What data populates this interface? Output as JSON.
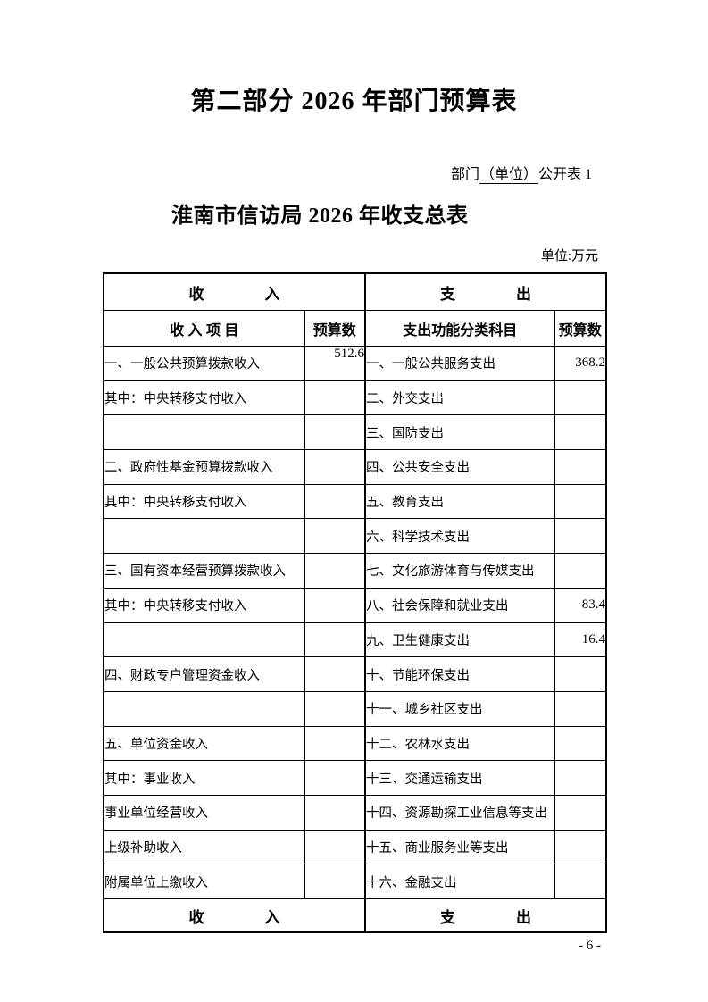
{
  "page": {
    "part_title": "第二部分  2026 年部门预算表",
    "table_label_prefix": "部门",
    "table_label_underlined": "（单位）",
    "table_label_suffix": "公开表 1",
    "table_title": "淮南市信访局 2026 年收支总表",
    "unit_note": "单位:万元",
    "page_number": "- 6 -"
  },
  "table": {
    "income_group_header": "收　　　　入",
    "expense_group_header": "支　　　　出",
    "income_group_footer": "收　　　　入",
    "expense_group_footer": "支　　　　出",
    "columns": {
      "income_item": "收 入 项 目",
      "income_budget": "预算数",
      "expense_item": "支出功能分类科目",
      "expense_budget": "预算数"
    },
    "rows": [
      {
        "income": "一、一般公共预算拨款收入",
        "income_indent": 0,
        "income_value": "512.6",
        "income_value_top": true,
        "expense": "一、一般公共服务支出",
        "expense_value": "368.2"
      },
      {
        "income": "其中：中央转移支付收入",
        "income_indent": 1,
        "income_value": "",
        "expense": "二、外交支出",
        "expense_value": ""
      },
      {
        "income": "",
        "income_indent": 0,
        "income_value": "",
        "expense": "三、国防支出",
        "expense_value": ""
      },
      {
        "income": "二、政府性基金预算拨款收入",
        "income_indent": 0,
        "income_value": "",
        "expense": "四、公共安全支出",
        "expense_value": ""
      },
      {
        "income": "其中：中央转移支付收入",
        "income_indent": 1,
        "income_value": "",
        "expense": "五、教育支出",
        "expense_value": ""
      },
      {
        "income": "",
        "income_indent": 0,
        "income_value": "",
        "expense": "六、科学技术支出",
        "expense_value": ""
      },
      {
        "income": "三、国有资本经营预算拨款收入",
        "income_indent": 0,
        "income_value": "",
        "expense": "七、文化旅游体育与传媒支出",
        "expense_value": ""
      },
      {
        "income": "其中：中央转移支付收入",
        "income_indent": 1,
        "income_value": "",
        "expense": "八、社会保障和就业支出",
        "expense_value": "83.4"
      },
      {
        "income": "",
        "income_indent": 0,
        "income_value": "",
        "expense": "九、卫生健康支出",
        "expense_value": "16.4"
      },
      {
        "income": "四、财政专户管理资金收入",
        "income_indent": 0,
        "income_value": "",
        "expense": "十、节能环保支出",
        "expense_value": ""
      },
      {
        "income": "",
        "income_indent": 0,
        "income_value": "",
        "expense": "十一、城乡社区支出",
        "expense_value": ""
      },
      {
        "income": "五、单位资金收入",
        "income_indent": 0,
        "income_value": "",
        "expense": "十二、农林水支出",
        "expense_value": ""
      },
      {
        "income": "其中：事业收入",
        "income_indent": 1,
        "income_value": "",
        "expense": "十三、交通运输支出",
        "expense_value": ""
      },
      {
        "income": "事业单位经营收入",
        "income_indent": 2,
        "income_value": "",
        "expense": "十四、资源勘探工业信息等支出",
        "expense_value": ""
      },
      {
        "income": "上级补助收入",
        "income_indent": 2,
        "income_value": "",
        "expense": "十五、商业服务业等支出",
        "expense_value": ""
      },
      {
        "income": "附属单位上缴收入",
        "income_indent": 2,
        "income_value": "",
        "expense": "十六、金融支出",
        "expense_value": ""
      }
    ]
  }
}
